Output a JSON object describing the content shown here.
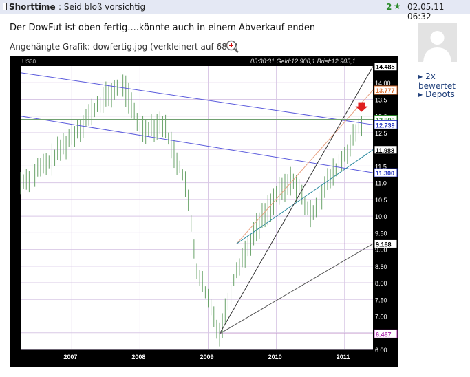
{
  "post": {
    "category": "Shorttime",
    "subject": ": Seid bloß vorsichtig",
    "rating_count": "2",
    "date": "02.05.11 06:32",
    "body": "Der DowFut ist oben fertig....könnte auch in einem Abverkauf enden",
    "attachment": "Angehängte Grafik: dowfertig.jpg (verkleinert auf 68%)"
  },
  "sidebar": {
    "links": [
      "2x bewertet",
      "Depots"
    ]
  },
  "chart": {
    "symbol": "US30",
    "header": "05:30:31  Geld:12.900,1  Brief:12.905,1",
    "price_labels": [
      {
        "text": "14.485",
        "color": "#000000",
        "bg": "#ffffff",
        "value": 14.485
      },
      {
        "text": "13.777",
        "color": "#e07030",
        "bg": "#ffffff",
        "value": 13.777
      },
      {
        "text": "12.900",
        "color": "#2a8a2a",
        "bg": "#ffffff",
        "value": 12.9
      },
      {
        "text": "12.739",
        "color": "#2030c0",
        "bg": "#ffffff",
        "value": 12.739
      },
      {
        "text": "11.988",
        "color": "#000000",
        "bg": "#ffffff",
        "value": 11.988
      },
      {
        "text": "11.300",
        "color": "#2030c0",
        "bg": "#ffffff",
        "value": 11.3
      },
      {
        "text": "9.168",
        "color": "#000000",
        "bg": "#ffffff",
        "value": 9.168
      },
      {
        "text": "6.467",
        "color": "#b030b0",
        "bg": "#ffffff",
        "value": 6.467
      }
    ]
  },
  "chart_data": {
    "type": "candlestick",
    "title": "US30",
    "y_ticks": [
      "14.00",
      "13.5",
      "13.0",
      "12.5",
      "12.0",
      "11.5",
      "11.0",
      "10.5",
      "10.0",
      "9.50",
      "9.00",
      "8.50",
      "8.00",
      "7.50",
      "7.00",
      "6.50",
      "6.00"
    ],
    "x_ticks": [
      "2007",
      "2008",
      "2009",
      "2010",
      "2011"
    ],
    "ylim": [
      6.0,
      14.5
    ],
    "grid": true,
    "series": [
      {
        "name": "US30",
        "x": [
          "2006-04",
          "2006-09",
          "2007-01",
          "2007-06",
          "2007-10",
          "2008-01",
          "2008-05",
          "2008-09",
          "2008-11",
          "2009-03",
          "2009-06",
          "2009-10",
          "2010-01",
          "2010-04",
          "2010-07",
          "2010-10",
          "2011-01",
          "2011-04"
        ],
        "values": [
          11.0,
          11.6,
          12.4,
          13.4,
          14.0,
          12.6,
          12.8,
          11.0,
          8.4,
          6.5,
          8.4,
          9.8,
          10.6,
          11.1,
          10.0,
          11.0,
          11.8,
          12.8
        ]
      }
    ]
  }
}
